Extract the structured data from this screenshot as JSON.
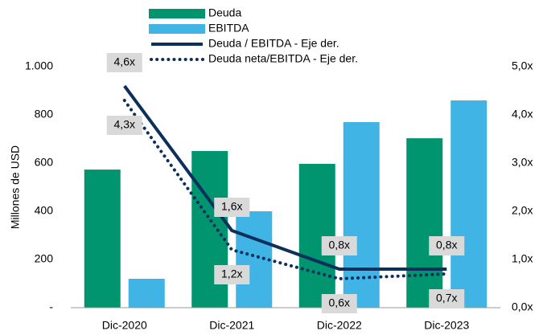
{
  "chart_data": {
    "type": "bar-line",
    "categories": [
      "Dic-2020",
      "Dic-2021",
      "Dic-2022",
      "Dic-2023"
    ],
    "y_label": "Millones de USD",
    "series": [
      {
        "name": "Deuda",
        "type": "bar",
        "color": "#00956f",
        "values": [
          573,
          650,
          597,
          703
        ]
      },
      {
        "name": "EBITDA",
        "type": "bar",
        "color": "#3fb4e5",
        "values": [
          120,
          400,
          770,
          860
        ]
      },
      {
        "name": "Deuda / EBITDA - Eje der.",
        "type": "line",
        "axis": "y2",
        "color": "#0d2f5c",
        "style": "solid",
        "label_side": "above",
        "values": [
          4.6,
          1.6,
          0.8,
          0.8
        ],
        "value_labels": [
          "4,6x",
          "1,6x",
          "0,8x",
          "0,8x"
        ]
      },
      {
        "name": "Deuda neta/EBITDA - Eje der.",
        "type": "line",
        "axis": "y2",
        "color": "#0d2f5c",
        "style": "dotted",
        "label_side": "below",
        "values": [
          4.3,
          1.2,
          0.6,
          0.7
        ],
        "value_labels": [
          "4,3x",
          "1,2x",
          "0,6x",
          "0,7x"
        ]
      }
    ],
    "ylim": [
      0,
      1000
    ],
    "yticks": [
      {
        "value": 0,
        "label": "-"
      },
      200,
      400,
      600,
      800,
      {
        "value": 1000,
        "label": "1.000"
      }
    ],
    "y2lim": [
      0,
      5
    ],
    "y2ticks": [
      {
        "value": 0,
        "label": "0,0x"
      },
      {
        "value": 1,
        "label": "1,0x"
      },
      {
        "value": 2,
        "label": "2,0x"
      },
      {
        "value": 3,
        "label": "3,0x"
      },
      {
        "value": 4,
        "label": "4,0x"
      },
      {
        "value": 5,
        "label": "5,0x"
      }
    ]
  }
}
